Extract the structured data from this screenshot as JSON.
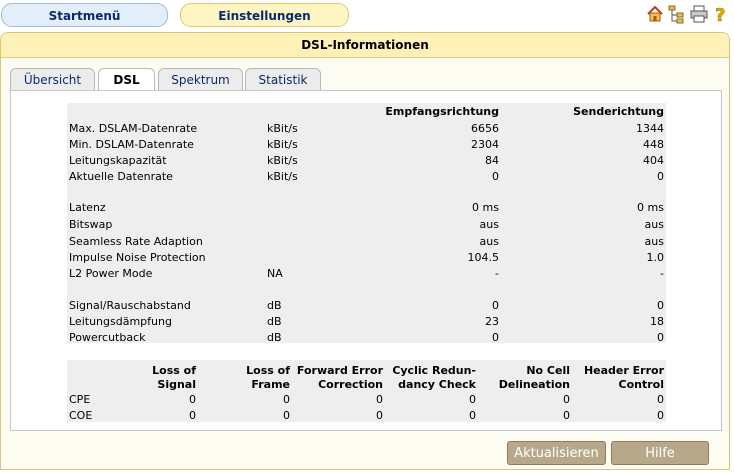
{
  "nav": {
    "start": "Startmenü",
    "settings": "Einstellungen"
  },
  "panel_title": "DSL-Informationen",
  "tabs": [
    "Übersicht",
    "DSL",
    "Spektrum",
    "Statistik"
  ],
  "table1": {
    "headers": {
      "rx": "Empfangsrichtung",
      "tx": "Senderichtung"
    },
    "rows": [
      {
        "label": "Max. DSLAM-Datenrate",
        "unit": "kBit/s",
        "rx": "6656",
        "tx": "1344"
      },
      {
        "label": "Min. DSLAM-Datenrate",
        "unit": "kBit/s",
        "rx": "2304",
        "tx": "448"
      },
      {
        "label": "Leitungskapazität",
        "unit": "kBit/s",
        "rx": "84",
        "tx": "404"
      },
      {
        "label": "Aktuelle Datenrate",
        "unit": "kBit/s",
        "rx": "0",
        "tx": "0"
      },
      {
        "label": "Latenz",
        "unit": "",
        "rx": "0 ms",
        "tx": "0 ms"
      },
      {
        "label": "Bitswap",
        "unit": "",
        "rx": "aus",
        "tx": "aus"
      },
      {
        "label": "Seamless Rate Adaption",
        "unit": "",
        "rx": "aus",
        "tx": "aus"
      },
      {
        "label": "Impulse Noise Protection",
        "unit": "",
        "rx": "104.5",
        "tx": "1.0"
      },
      {
        "label": "L2 Power Mode",
        "unit": "NA",
        "rx": "-",
        "tx": "-"
      },
      {
        "label": "Signal/Rauschabstand",
        "unit": "dB",
        "rx": "0",
        "tx": "0"
      },
      {
        "label": "Leitungsdämpfung",
        "unit": "dB",
        "rx": "23",
        "tx": "18"
      },
      {
        "label": "Powercutback",
        "unit": "dB",
        "rx": "0",
        "tx": "0"
      }
    ]
  },
  "table2": {
    "headers": [
      [
        "Loss of",
        "Signal"
      ],
      [
        "Loss of",
        "Frame"
      ],
      [
        "Forward Error",
        "Correction"
      ],
      [
        "Cyclic Redun-",
        "dancy Check"
      ],
      [
        "No Cell",
        "Delineation"
      ],
      [
        "Header Error",
        "Control"
      ]
    ],
    "rows": [
      {
        "label": "CPE",
        "values": [
          "0",
          "0",
          "0",
          "0",
          "0",
          "0"
        ]
      },
      {
        "label": "COE",
        "values": [
          "0",
          "0",
          "0",
          "0",
          "0",
          "0"
        ]
      }
    ]
  },
  "buttons": {
    "refresh": "Aktualisieren",
    "help": "Hilfe"
  },
  "icons": [
    "home-icon",
    "tree-icon",
    "printer-icon",
    "help-icon"
  ],
  "colors": {
    "nav_start": "#e3eefb",
    "nav_settings": "#fdf5c2",
    "panel_title": "#fdf1b8",
    "table_bg": "#eeeeee",
    "button": "#b8a88a"
  }
}
